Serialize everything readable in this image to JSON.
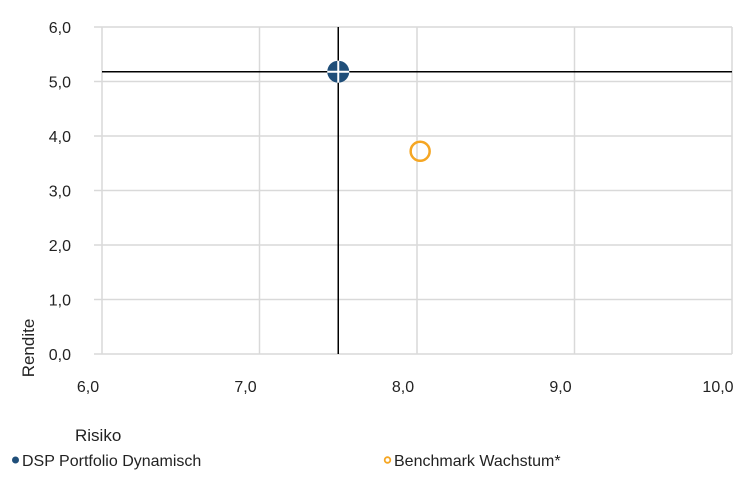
{
  "chart_data": {
    "type": "scatter",
    "xlabel": "Risiko",
    "ylabel": "Rendite",
    "xlim": [
      6.0,
      10.0
    ],
    "ylim": [
      0.0,
      6.0
    ],
    "x_ticks": [
      "6,0",
      "7,0",
      "8,0",
      "9,0",
      "10,0"
    ],
    "y_ticks": [
      "0,0",
      "1,0",
      "2,0",
      "3,0",
      "4,0",
      "5,0",
      "6,0"
    ],
    "grid": true,
    "legend_position": "bottom",
    "crosshair": {
      "x": 7.5,
      "y": 5.18
    },
    "series": [
      {
        "name": "DSP Portfolio Dynamisch",
        "marker": "filled-circle",
        "color": "#1f4e79",
        "points": [
          {
            "x": 7.5,
            "y": 5.18
          }
        ]
      },
      {
        "name": "Benchmark Wachstum*",
        "marker": "hollow-circle",
        "color": "#f5a623",
        "points": [
          {
            "x": 8.02,
            "y": 3.72
          }
        ]
      }
    ]
  }
}
